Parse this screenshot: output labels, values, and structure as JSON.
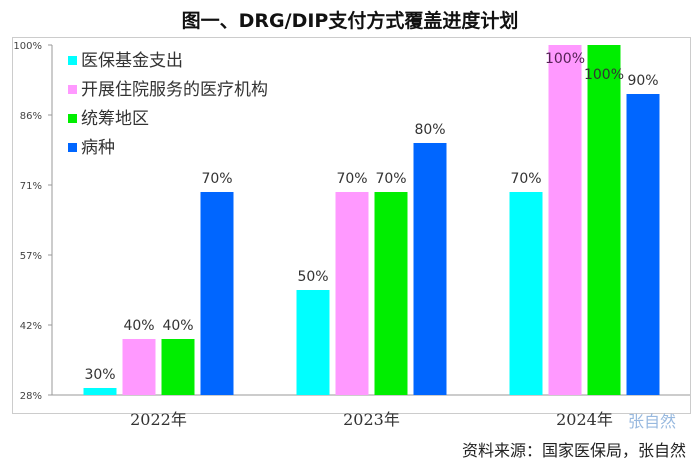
{
  "chart_data": {
    "type": "bar",
    "title": "图一、DRG/DIP支付方式覆盖进度计划",
    "categories": [
      "2022年",
      "2023年",
      "2024年"
    ],
    "series": [
      {
        "name": "医保基金支出",
        "color": "#00ffff",
        "values": [
          30,
          50,
          70
        ]
      },
      {
        "name": "开展住院服务的医疗机构",
        "color": "#ff99ff",
        "values": [
          40,
          70,
          100
        ]
      },
      {
        "name": "统筹地区",
        "color": "#00ee00",
        "values": [
          40,
          70,
          100
        ]
      },
      {
        "name": "病种",
        "color": "#0066ff",
        "values": [
          70,
          80,
          90
        ]
      }
    ],
    "data_labels": [
      [
        "30%",
        "50%",
        "70%"
      ],
      [
        "40%",
        "70%",
        "100%"
      ],
      [
        "40%",
        "70%",
        "100%"
      ],
      [
        "70%",
        "80%",
        "90%"
      ]
    ],
    "yticks": [
      "28%",
      "42%",
      "57%",
      "71%",
      "86%",
      "100%"
    ],
    "ylim": [
      28.57,
      100
    ],
    "grid": false,
    "legend": "top-left"
  },
  "source": "资料来源：国家医保局，张自然",
  "watermark": "张自然"
}
